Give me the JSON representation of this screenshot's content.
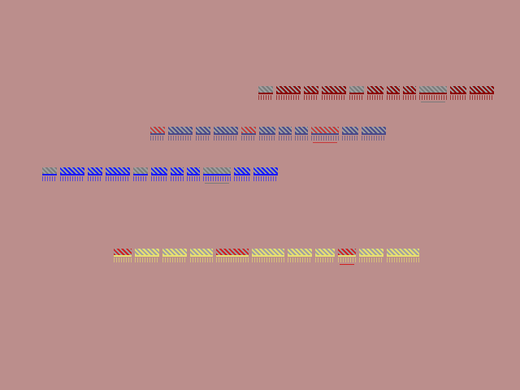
{
  "background": "#bb8e8c",
  "rows": [
    {
      "color": "#8b0000",
      "accent": "#7a7a7a"
    },
    {
      "color": "#4a4a8a",
      "accent": "#c83838"
    },
    {
      "color": "#1a1aff",
      "accent": "#7a7a7a"
    },
    {
      "color": "#e8e070",
      "accent": "#d02020"
    }
  ]
}
